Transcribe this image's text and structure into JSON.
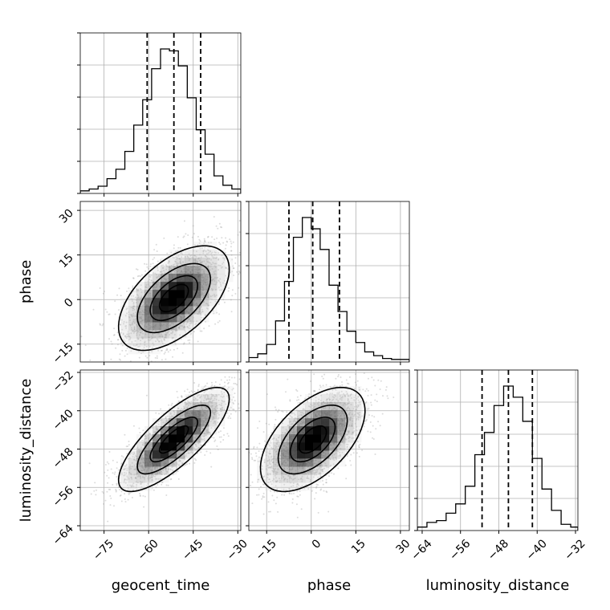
{
  "chart_data": {
    "type": "corner",
    "parameters": [
      "geocent_time",
      "phase",
      "luminosity_distance"
    ],
    "grid": true,
    "axes": {
      "geocent_time": {
        "label": "geocent_time",
        "lim": [
          -83,
          -29
        ],
        "ticks": [
          -75,
          -60,
          -45,
          -30
        ],
        "tick_labels": [
          "−75",
          "−60",
          "−45",
          "−30"
        ]
      },
      "phase": {
        "label": "phase",
        "lim": [
          -21,
          33
        ],
        "ticks": [
          -15,
          0,
          15,
          30
        ],
        "tick_labels": [
          "−15",
          "0",
          "15",
          "30"
        ]
      },
      "luminosity_distance": {
        "label": "luminosity_distance",
        "lim": [
          -65,
          -31.5
        ],
        "ticks": [
          -64,
          -56,
          -48,
          -40,
          -32
        ],
        "tick_labels": [
          "−64",
          "−56",
          "−48",
          "−40",
          "−32"
        ]
      }
    },
    "quantiles": {
      "geocent_time": [
        -60.5,
        -51.5,
        -42.5
      ],
      "phase": [
        -7.5,
        0.5,
        9.5
      ],
      "luminosity_distance": [
        -51.5,
        -46,
        -41
      ]
    },
    "histograms": {
      "geocent_time": {
        "edges": [
          -83,
          -80,
          -77,
          -74,
          -71,
          -68,
          -65,
          -62,
          -59,
          -56,
          -53,
          -50,
          -47,
          -44,
          -41,
          -38,
          -35,
          -32,
          -29
        ],
        "counts": [
          1,
          3,
          6,
          14,
          24,
          43,
          71,
          98,
          131,
          152,
          150,
          134,
          100,
          66,
          40,
          17,
          7,
          3
        ]
      },
      "phase": {
        "edges": [
          -21,
          -18,
          -15,
          -12,
          -9,
          -6,
          -3,
          0,
          3,
          6,
          9,
          12,
          15,
          18,
          21,
          24,
          27,
          30,
          33
        ],
        "counts": [
          3,
          7,
          17,
          42,
          84,
          131,
          152,
          140,
          118,
          80,
          52,
          31,
          19,
          9,
          5,
          2,
          1,
          1
        ]
      },
      "luminosity_distance": {
        "edges": [
          -65,
          -63,
          -61,
          -59,
          -57,
          -55,
          -53,
          -51,
          -49,
          -47,
          -45,
          -43,
          -41,
          -39,
          -37,
          -35,
          -33,
          -31.5
        ],
        "counts": [
          2,
          7,
          9,
          17,
          27,
          46,
          80,
          104,
          133,
          154,
          142,
          116,
          76,
          43,
          20,
          5,
          2
        ]
      }
    },
    "correlations": {
      "phase_vs_geocent_time": 0.55,
      "luminosity_distance_vs_geocent_time": 0.78,
      "luminosity_distance_vs_phase": 0.55
    },
    "contour_levels_sigma": [
      0.5,
      1,
      1.5,
      2
    ]
  }
}
